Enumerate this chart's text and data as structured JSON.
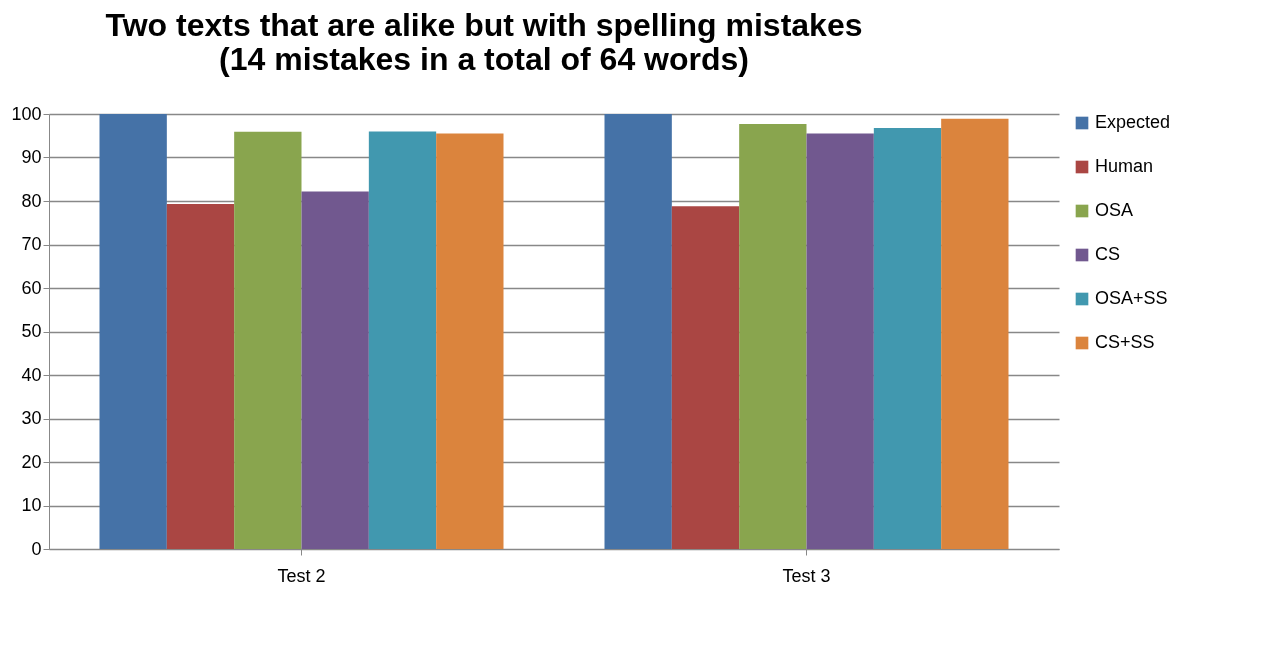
{
  "chart_data": {
    "type": "bar",
    "title": "Two texts that are alike but with spelling mistakes\n(14 mistakes in a total of 64 words)",
    "categories": [
      "Test 2",
      "Test 3"
    ],
    "series": [
      {
        "name": "Expected",
        "color": "#4572a7",
        "values": [
          100,
          100
        ]
      },
      {
        "name": "Human",
        "color": "#aa4643",
        "values": [
          79.3,
          78.8
        ]
      },
      {
        "name": "OSA",
        "color": "#89a54e",
        "values": [
          95.9,
          97.7
        ]
      },
      {
        "name": "CS",
        "color": "#71588f",
        "values": [
          82.2,
          95.5
        ]
      },
      {
        "name": "OSA+SS",
        "color": "#4198af",
        "values": [
          96.0,
          96.8
        ]
      },
      {
        "name": "CS+SS",
        "color": "#db843d",
        "values": [
          95.5,
          98.9
        ]
      }
    ],
    "ylim": [
      0,
      100
    ],
    "yticks": [
      0,
      10,
      20,
      30,
      40,
      50,
      60,
      70,
      80,
      90,
      100
    ],
    "grid": "y",
    "legend": "right"
  }
}
